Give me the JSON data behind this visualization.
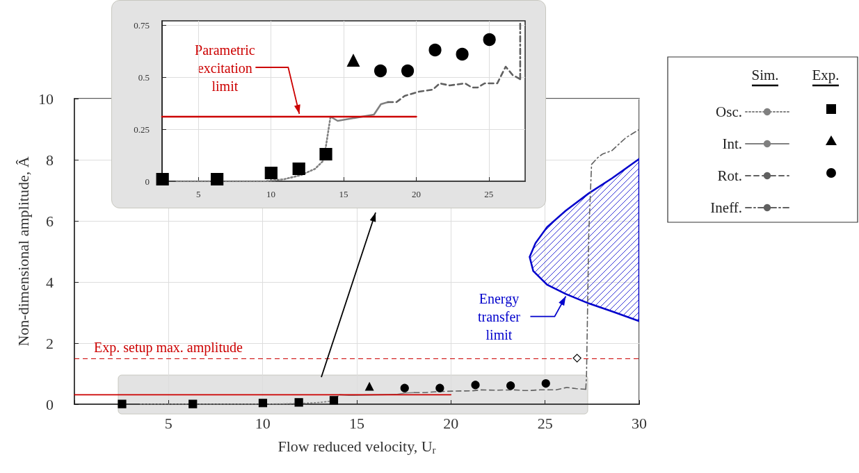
{
  "chart_data": [
    {
      "type": "line",
      "xlabel": "Flow reduced velocity, U$_{r}$",
      "ylabel": "Non-dimensional amplitude, Â",
      "xlim": [
        0,
        30
      ],
      "ylim": [
        0,
        10
      ],
      "xticks": [
        {
          "value": 0,
          "label": null
        },
        5,
        10,
        15,
        20,
        25,
        30
      ],
      "yticks": [
        0,
        2,
        4,
        6,
        8,
        10
      ],
      "grid": true,
      "legend": "right",
      "annotations": [
        "Sim.",
        "Exp.",
        {
          "text": "Energy transfer limit",
          "x": 26.1,
          "y": 3.6
        }
      ],
      "ref_lines": [
        {
          "axis": "y",
          "value": 1.5,
          "label": "Exp. setup max. amplitude",
          "color": "#cc0000",
          "line_style": "dashed"
        }
      ],
      "series": [
        {
          "name": "Osc.",
          "color": "#808080",
          "line_style": "dotted",
          "x": [
            3.5,
            6.68,
            9.57,
            10.92,
            12.08,
            13.04,
            13.62,
            13.81,
            14.1
          ],
          "values": [
            0,
            0,
            0,
            0.01,
            0.03,
            0.06,
            0.1,
            0.18,
            0.31
          ]
        },
        {
          "name": "Int.",
          "color": "#808080",
          "line_style": "solid",
          "x": [
            14.1,
            14.59,
            17.09,
            17.57,
            18.06
          ],
          "values": [
            0.31,
            0.29,
            0.32,
            0.37,
            0.38
          ]
        },
        {
          "name": "Rot.",
          "color": "#606060",
          "line_style": "dashed",
          "x": [
            18.06,
            18.64,
            19.21,
            20.18,
            21.14,
            21.62,
            22.3,
            23.36,
            23.84,
            24.23,
            24.71,
            25.58,
            26.16,
            26.64,
            27.16
          ],
          "values": [
            0.38,
            0.38,
            0.41,
            0.43,
            0.44,
            0.47,
            0.46,
            0.47,
            0.45,
            0.45,
            0.47,
            0.47,
            0.55,
            0.51,
            0.49
          ]
        },
        {
          "name": "Ineff.",
          "color": "#606060",
          "line_style": "dashdot",
          "x": [
            27.16,
            27.2,
            27.32,
            27.47,
            27.8,
            28.06,
            28.55,
            29.29,
            29.97
          ],
          "values": [
            0.49,
            0.89,
            5.57,
            7.85,
            8.07,
            8.19,
            8.3,
            8.72,
            8.98
          ]
        },
        {
          "type": "scatter",
          "color": "#000000",
          "marker": "square",
          "x": [
            2.53,
            6.29,
            10.01,
            11.92,
            13.78
          ],
          "values": [
            0.01,
            0.01,
            0.04,
            0.06,
            0.13
          ]
        },
        {
          "type": "scatter",
          "color": "#000000",
          "marker": "triangle",
          "x": [
            15.67
          ],
          "values": [
            0.58
          ]
        },
        {
          "type": "scatter",
          "color": "#000000",
          "marker": "circle",
          "x": [
            17.54,
            19.41,
            21.3,
            23.17,
            25.04
          ],
          "values": [
            0.53,
            0.53,
            0.63,
            0.61,
            0.68
          ]
        },
        {
          "type": "scatter",
          "color": "#ffffff",
          "marker": "diamond",
          "x": [
            26.7
          ],
          "values": [
            1.51
          ]
        },
        {
          "color": "#cc0000",
          "line_style": "solid",
          "x": [
            0,
            20
          ],
          "values": [
            0.31,
            0.31
          ]
        },
        {
          "type": "area",
          "color": "#0000cc",
          "x": [
            30,
            28.55,
            27.32,
            26.09,
            25.11,
            24.49,
            24.18,
            24.37,
            25.11,
            26.09,
            27.32,
            28.55,
            30
          ],
          "values": [
            8.03,
            7.39,
            6.9,
            6.33,
            5.8,
            5.27,
            4.82,
            4.36,
            3.91,
            3.61,
            3.3,
            3.04,
            2.72
          ]
        }
      ]
    },
    {
      "type": "line",
      "xlim": [
        2.5,
        27.5
      ],
      "ylim": [
        0,
        0.77
      ],
      "xticks": [
        5,
        10,
        15,
        20,
        25
      ],
      "yticks": [
        0,
        0.25,
        0.5,
        0.75
      ],
      "grid": true,
      "annotations": [
        {
          "text": "Parametric excitation limit",
          "x": 12,
          "y": 0.31
        }
      ],
      "series": [
        {
          "color": "#808080",
          "line_style": "dotted",
          "x": [
            3.5,
            6.68,
            9.57,
            10.92,
            12.08,
            13.04,
            13.62,
            13.81,
            14.1
          ],
          "values": [
            0,
            0,
            0,
            0.01,
            0.03,
            0.06,
            0.1,
            0.18,
            0.31
          ]
        },
        {
          "color": "#808080",
          "line_style": "solid",
          "x": [
            14.1,
            14.59,
            17.09,
            17.57,
            18.06
          ],
          "values": [
            0.31,
            0.29,
            0.32,
            0.37,
            0.38
          ]
        },
        {
          "color": "#606060",
          "line_style": "dashed",
          "x": [
            18.06,
            18.64,
            19.21,
            20.18,
            21.14,
            21.62,
            22.3,
            23.36,
            23.84,
            24.23,
            24.71,
            25.58,
            26.16,
            26.64,
            27.16
          ],
          "values": [
            0.38,
            0.38,
            0.41,
            0.43,
            0.44,
            0.47,
            0.46,
            0.47,
            0.45,
            0.45,
            0.47,
            0.47,
            0.55,
            0.51,
            0.49
          ]
        },
        {
          "color": "#606060",
          "line_style": "dashdot",
          "x": [
            27.16,
            27.16
          ],
          "values": [
            0.49,
            0.77
          ]
        },
        {
          "type": "scatter",
          "color": "#000000",
          "marker": "square",
          "x": [
            2.53,
            6.29,
            10.01,
            11.92,
            13.78
          ],
          "values": [
            0.01,
            0.01,
            0.04,
            0.06,
            0.13
          ]
        },
        {
          "type": "scatter",
          "color": "#000000",
          "marker": "triangle",
          "x": [
            15.67
          ],
          "values": [
            0.58
          ]
        },
        {
          "type": "scatter",
          "color": "#000000",
          "marker": "circle",
          "x": [
            17.54,
            19.41,
            21.3,
            23.17,
            25.04
          ],
          "values": [
            0.53,
            0.53,
            0.63,
            0.61,
            0.68
          ]
        },
        {
          "color": "#cc0000",
          "line_style": "solid",
          "x": [
            2.5,
            20
          ],
          "values": [
            0.31,
            0.31
          ]
        }
      ]
    }
  ]
}
